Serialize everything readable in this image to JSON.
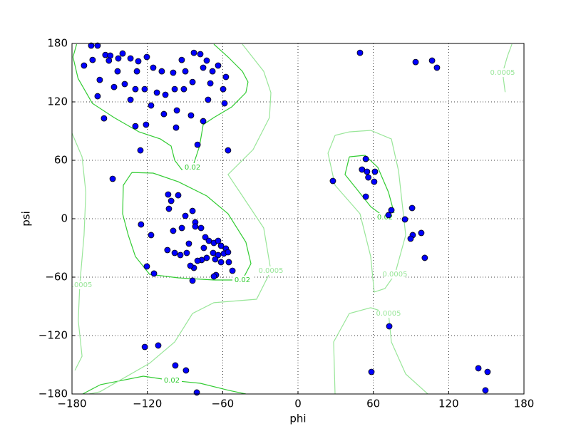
{
  "chart_data": {
    "type": "scatter",
    "x_label": "phi",
    "y_label": "psi",
    "xlim": [
      -180,
      180
    ],
    "ylim": [
      -180,
      180
    ],
    "xticks": [
      {
        "value": -180,
        "label": "−180"
      },
      {
        "value": -120,
        "label": "−120"
      },
      {
        "value": -60,
        "label": "−60"
      },
      0,
      60,
      120,
      180
    ],
    "yticks": [
      {
        "value": -180,
        "label": "−180"
      },
      {
        "value": -120,
        "label": "−120"
      },
      {
        "value": -60,
        "label": "−60"
      },
      0,
      60,
      120,
      180
    ],
    "grid": true,
    "color": "#0000ff",
    "x": [
      49.4,
      93.7,
      106.8,
      110.7,
      27.8,
      54,
      51,
      55,
      56,
      61.3,
      60.7,
      54,
      74.4,
      72.1,
      85.2,
      91.4,
      89.7,
      98.2,
      90.9,
      101,
      72.7,
      58.5,
      143.7,
      151,
      149.3,
      -122,
      -111.3,
      -97.7,
      -89.2,
      -80.6,
      -103.4,
      -95.4,
      -101,
      -102.8,
      -125,
      -117,
      -104,
      -98.2,
      -93.7,
      -88.6,
      -89.7,
      -84,
      -81.8,
      -81.8,
      -92.5,
      -99.4,
      -77.2,
      -86.9,
      -73.8,
      -71,
      -67,
      -75,
      -67.6,
      -63.6,
      -61.3,
      -57.4,
      -59.1,
      -63.6,
      -65.9,
      -55.7,
      -61.3,
      -72.7,
      -76.7,
      -80,
      -82.9,
      -85.7,
      -65.3,
      -67,
      -52.2,
      -55.1,
      -84,
      -120.4,
      -114.7,
      -147.6,
      -164.7,
      -159.6,
      -170.4,
      -163.6,
      -153.4,
      -149.5,
      -150.6,
      -143.1,
      -139.7,
      -133.4,
      -127.2,
      -120.4,
      -115.3,
      -108.5,
      -99.4,
      -92.6,
      -82.9,
      -77.8,
      -75.5,
      -68.1,
      -63.6,
      -57.4,
      -59.6,
      -69.8,
      -84,
      -90.9,
      -98.2,
      -105.6,
      -112.4,
      -122.1,
      -129.5,
      -138,
      -146.5,
      -157.9,
      -159.6,
      -133.4,
      -117,
      -106.8,
      -96.5,
      -85.2,
      -97.1,
      -75.5,
      -80,
      -129.5,
      -121,
      -125.5,
      -55.7,
      -154.5,
      -128.3,
      -143.7,
      -89.7,
      -72.7,
      -58.5,
      -71.6
    ],
    "y": [
      170.4,
      160.9,
      162.4,
      155.1,
      38.8,
      61.4,
      50.5,
      48.3,
      42.4,
      48.3,
      38,
      22.7,
      8.8,
      3.7,
      -0.7,
      -16.8,
      -20.5,
      -14.6,
      11,
      -40.2,
      -110.5,
      -157.3,
      -153.6,
      -157.3,
      -176.3,
      -131.7,
      -130.2,
      -150.7,
      -155.8,
      -178.5,
      24.9,
      24.1,
      18.3,
      10.2,
      -5.9,
      -16.8,
      -32.2,
      -35.1,
      -37.3,
      -35.1,
      2.9,
      8,
      -3.7,
      -8,
      -9.5,
      -12.4,
      -9.5,
      -25.6,
      -19,
      -22.7,
      -24.9,
      -30,
      -35.1,
      -22.7,
      -27.8,
      -30.7,
      -35.8,
      -37.3,
      -41.7,
      -34.4,
      -44.6,
      -40.2,
      -42.4,
      -43.2,
      -50.5,
      -48.3,
      -57.8,
      -59.3,
      -53.4,
      -44.6,
      -63.6,
      -49,
      -56.3,
      41,
      177.8,
      177.8,
      157.3,
      163.1,
      168.2,
      167.5,
      162.4,
      164.6,
      169.7,
      164.6,
      161.7,
      166.1,
      155.1,
      151.4,
      150,
      163.1,
      170.4,
      169,
      155.1,
      151.4,
      157.3,
      145.6,
      133.1,
      139,
      140.4,
      133.1,
      133.1,
      127.3,
      129.5,
      133.1,
      133.1,
      138.3,
      135.3,
      142.6,
      125.8,
      122.2,
      116.3,
      107.5,
      111.2,
      106.1,
      93.6,
      100.2,
      76,
      95,
      96.6,
      70.2,
      70.2,
      103.1,
      151.4,
      151.4,
      151.4,
      162.4,
      118.5,
      122.2
    ],
    "contours": [
      {
        "level": 0.02,
        "color": "#33cc33",
        "lines": [
          {
            "x": [
              -176.3,
              -179.2,
              -175.2,
              -163.8,
              -146.5,
              -126.6,
              -109.6,
              -101.1,
              -98.2,
              -92.6,
              -84,
              -78.4,
              -75.5,
              -67,
              -52.8,
              -41.5,
              -39.8,
              -44.3,
              -55.7,
              -67
            ],
            "y": [
              179.2,
              166.1,
              144.1,
              118.5,
              103.9,
              89.2,
              81.9,
              74.6,
              60,
              50.5,
              52.7,
              74.6,
              96.6,
              103.9,
              114.8,
              129.5,
              140.4,
              151.4,
              166.1,
              179.2
            ]
          },
          {
            "x": [
              -132.3,
              -139.1,
              -139.7,
              -135.2,
              -129.5,
              -118.2,
              -95.4,
              -67,
              -44.3,
              -37.5,
              -41.5,
              -55.7,
              -72.7,
              -95.4,
              -115.3,
              -132.3
            ],
            "y": [
              47.5,
              34.4,
              5.1,
              -16.8,
              -38.8,
              -57.1,
              -60.7,
              -62.9,
              -62.9,
              -46.1,
              -24.1,
              5.1,
              23.4,
              38,
              46.8,
              47.5
            ]
          },
          {
            "x": [
              40.9,
              53.4,
              63.6,
              72.1,
              76.7,
              69.3,
              57.9,
              46.6,
              37.5,
              40.9
            ],
            "y": [
              63.6,
              65.1,
              52.7,
              27.1,
              5.1,
              1.5,
              12.4,
              30.7,
              45.4,
              63.6
            ]
          },
          {
            "x": [
              -171.5,
              -157.3,
              -123.2,
              -100.5,
              -77.8,
              -55.1,
              -41.5
            ],
            "y": [
              -180,
              -170.4,
              -161.7,
              -166.1,
              -169,
              -176.3,
              -180
            ]
          }
        ]
      },
      {
        "level": 0.0005,
        "color": "#99e699",
        "lines": [
          {
            "x": [
              -180,
              -172,
              -169,
              -170.4,
              -173.8,
              -175,
              -172,
              -177.7
            ],
            "y": [
              87.8,
              63.6,
              27,
              -16.8,
              -68,
              -104.6,
              -141.2,
              -155.8
            ]
          },
          {
            "x": [
              -44.3,
              -27.3,
              -21.6,
              -22.7,
              -35.8,
              -55.7,
              -44.3,
              -27.3,
              -21.6,
              -33,
              -67,
              -84,
              -98.2,
              -118.2,
              -157.9,
              -166.4
            ],
            "y": [
              179.2,
              151.4,
              129.5,
              103.9,
              71,
              45.4,
              23.4,
              -9.5,
              -53.4,
              -82.7,
              -86.3,
              -97.3,
              -126.6,
              -148.5,
              -177.8,
              -180
            ]
          },
          {
            "x": [
              29.5,
              23.9,
              29.5,
              49.4,
              57.9,
              60.7,
              69.3,
              77.2,
              85.8,
              80.1,
              74.4,
              57.9,
              40.9,
              29.5
            ],
            "y": [
              85.6,
              67.3,
              34.4,
              5.1,
              -38.8,
              -75.3,
              -71.7,
              -57.1,
              -16.8,
              49,
              81.9,
              90.7,
              89.2,
              85.6
            ]
          },
          {
            "x": [
              29.5,
              28.4,
              40.9,
              57.9,
              72.1,
              74.4,
              85.8,
              103.4
            ],
            "y": [
              -180,
              -126.6,
              -97.3,
              -91.4,
              -97.3,
              -126.6,
              -159.5,
              -180
            ]
          },
          {
            "x": [
              170.4,
              167,
              163,
              165
            ],
            "y": [
              179.2,
              167.5,
              150,
              130
            ]
          }
        ]
      }
    ]
  }
}
